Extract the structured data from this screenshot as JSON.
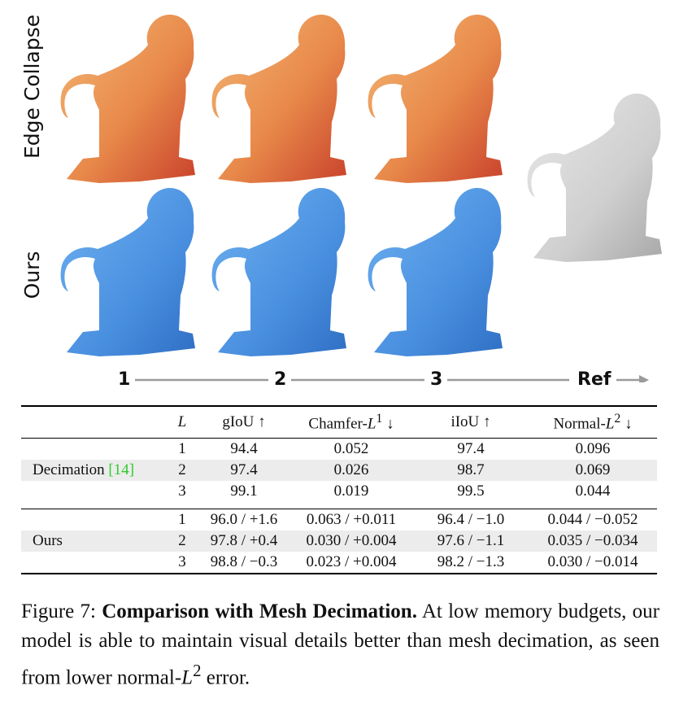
{
  "figure": {
    "row_labels": [
      "Edge Collapse",
      "Ours"
    ],
    "levels": [
      "1",
      "2",
      "3",
      "Ref"
    ],
    "colors": {
      "edge_collapse": "#e8894a",
      "ours": "#4a90e0",
      "reference": "#d2d2d2"
    }
  },
  "table": {
    "headers": {
      "L": "L",
      "giou": "gIoU ↑",
      "chamfer": "Chamfer-",
      "chamfer_sup": "1",
      "chamfer_arrow": " ↓",
      "iou": "iIoU ↑",
      "normal": "Normal-",
      "normal_sup": "2",
      "normal_arrow": " ↓"
    },
    "decimation": {
      "label": "Decimation ",
      "cite": "[14]",
      "rows": [
        {
          "L": "1",
          "giou": "94.4",
          "chamfer": "0.052",
          "iou": "97.4",
          "normal": "0.096"
        },
        {
          "L": "2",
          "giou": "97.4",
          "chamfer": "0.026",
          "iou": "98.7",
          "normal": "0.069"
        },
        {
          "L": "3",
          "giou": "99.1",
          "chamfer": "0.019",
          "iou": "99.5",
          "normal": "0.044"
        }
      ]
    },
    "ours": {
      "label": "Ours",
      "rows": [
        {
          "L": "1",
          "giou": "96.0 / +1.6",
          "chamfer": "0.063 / +0.011",
          "iou": "96.4 / −1.0",
          "normal": "0.044 / −0.052"
        },
        {
          "L": "2",
          "giou": "97.8 / +0.4",
          "chamfer": "0.030 / +0.004",
          "iou": "97.6 / −1.1",
          "normal": "0.035 / −0.034"
        },
        {
          "L": "3",
          "giou": "98.8 / −0.3",
          "chamfer": "0.023 / +0.004",
          "iou": "98.2 / −1.3",
          "normal": "0.030 / −0.014"
        }
      ]
    }
  },
  "caption": {
    "prefix": "Figure 7: ",
    "title": "Comparison with Mesh Decimation.",
    "body": " At low memory budgets, our model is able to maintain visual details better than mesh decimation, as seen from lower normal-",
    "sym": "L",
    "sup": "2",
    "end": " error."
  }
}
